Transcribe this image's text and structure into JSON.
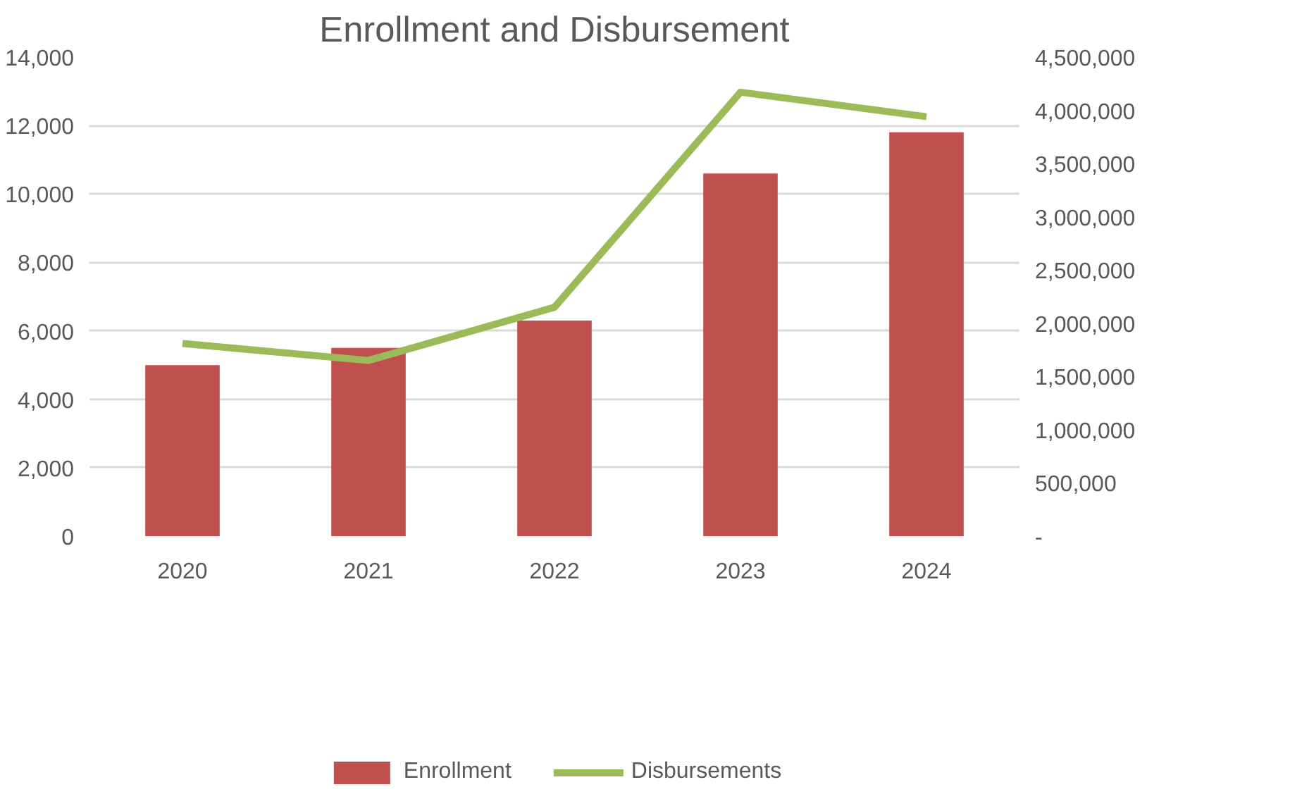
{
  "chart_data": {
    "type": "bar",
    "title": "Enrollment and Disbursement",
    "categories": [
      "2020",
      "2021",
      "2022",
      "2023",
      "2024"
    ],
    "series": [
      {
        "name": "Enrollment",
        "color": "#c0504d",
        "values": [
          5000,
          5500,
          6300,
          10600,
          11800
        ]
      },
      {
        "name": "Disbursements",
        "type": "line",
        "axis": "y2",
        "color": "#9bbb59",
        "values": [
          1810000,
          1650000,
          2150000,
          4170000,
          3940000
        ]
      }
    ],
    "ylim": [
      0,
      14000
    ],
    "yticks": [
      0,
      {
        "value": 2000,
        "label": "2,000"
      },
      {
        "value": 4000,
        "label": "4,000"
      },
      {
        "value": 6000,
        "label": "6,000"
      },
      {
        "value": 8000,
        "label": "8,000"
      },
      {
        "value": 10000,
        "label": "10,000"
      },
      {
        "value": 12000,
        "label": "12,000"
      },
      {
        "value": 14000,
        "label": "14,000"
      }
    ],
    "y2lim": [
      0,
      4500000
    ],
    "y2ticks": [
      {
        "value": 0,
        "label": "-"
      },
      {
        "value": 500000,
        "label": "500,000"
      },
      {
        "value": 1000000,
        "label": "1,000,000"
      },
      {
        "value": 1500000,
        "label": "1,500,000"
      },
      {
        "value": 2000000,
        "label": "2,000,000"
      },
      {
        "value": 2500000,
        "label": "2,500,000"
      },
      {
        "value": 3000000,
        "label": "3,000,000"
      },
      {
        "value": 3500000,
        "label": "3,500,000"
      },
      {
        "value": 4000000,
        "label": "4,000,000"
      },
      {
        "value": 4500000,
        "label": "4,500,000"
      }
    ],
    "grid": "y",
    "legend": "bottom"
  }
}
